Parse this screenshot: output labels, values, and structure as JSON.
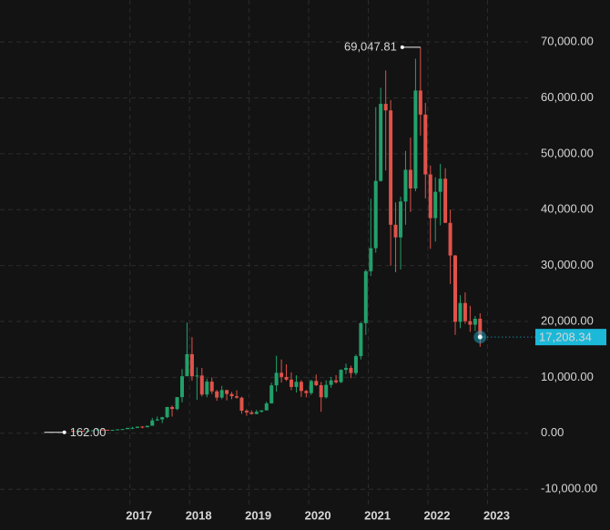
{
  "chart_data": {
    "type": "candlestick",
    "x": [
      2016.042,
      2016.125,
      2016.208,
      2016.292,
      2016.375,
      2016.458,
      2016.542,
      2016.625,
      2016.708,
      2016.792,
      2016.875,
      2016.958,
      2017.042,
      2017.125,
      2017.208,
      2017.292,
      2017.375,
      2017.458,
      2017.542,
      2017.625,
      2017.708,
      2017.792,
      2017.875,
      2017.958,
      2018.042,
      2018.125,
      2018.208,
      2018.292,
      2018.375,
      2018.458,
      2018.542,
      2018.625,
      2018.708,
      2018.792,
      2018.875,
      2018.958,
      2019.042,
      2019.125,
      2019.208,
      2019.292,
      2019.375,
      2019.458,
      2019.542,
      2019.625,
      2019.708,
      2019.792,
      2019.875,
      2019.958,
      2020.042,
      2020.125,
      2020.208,
      2020.292,
      2020.375,
      2020.458,
      2020.542,
      2020.625,
      2020.708,
      2020.792,
      2020.875,
      2020.958,
      2021.042,
      2021.125,
      2021.208,
      2021.292,
      2021.375,
      2021.458,
      2021.542,
      2021.625,
      2021.708,
      2021.792,
      2021.875,
      2021.958,
      2022.042,
      2022.125,
      2022.208,
      2022.292,
      2022.375,
      2022.458,
      2022.542,
      2022.625,
      2022.708,
      2022.792,
      2022.875
    ],
    "open": [
      430,
      370,
      437,
      416,
      448,
      531,
      673,
      624,
      575,
      609,
      700,
      745,
      963,
      970,
      1190,
      1080,
      1350,
      2300,
      2480,
      2880,
      4700,
      4340,
      6470,
      10200,
      14150,
      10200,
      10330,
      6930,
      9240,
      7500,
      6390,
      7730,
      7030,
      6630,
      6370,
      4040,
      3740,
      3460,
      3850,
      4100,
      5350,
      8570,
      10820,
      10080,
      9600,
      8290,
      9200,
      7570,
      7190,
      9350,
      8600,
      6440,
      8660,
      9460,
      9140,
      11350,
      11680,
      10780,
      13800,
      19700,
      28990,
      33110,
      45140,
      58920,
      57750,
      37300,
      35040,
      41460,
      47130,
      43790,
      61310,
      57000,
      46300,
      38480,
      43190,
      45540,
      37640,
      31800,
      19940,
      23300,
      20050,
      19420,
      20490
    ],
    "high": [
      460,
      440,
      440,
      470,
      550,
      780,
      700,
      620,
      615,
      720,
      750,
      980,
      1150,
      1200,
      1290,
      1350,
      2750,
      2980,
      2950,
      4740,
      4970,
      6470,
      11500,
      19800,
      17200,
      11800,
      11700,
      9750,
      10000,
      7760,
      8480,
      7760,
      7400,
      7680,
      6550,
      4300,
      4100,
      4200,
      4100,
      5650,
      9050,
      13880,
      13200,
      12330,
      10900,
      10370,
      9510,
      7750,
      9580,
      10500,
      9180,
      9470,
      10080,
      10400,
      11450,
      12470,
      12080,
      14100,
      19900,
      29300,
      41950,
      58350,
      61800,
      64900,
      59600,
      41300,
      42300,
      50500,
      52900,
      67000,
      69047.81,
      59100,
      47900,
      45800,
      48200,
      47400,
      40000,
      31900,
      24700,
      25200,
      22800,
      20990,
      21450
    ],
    "low": [
      350,
      365,
      405,
      410,
      440,
      520,
      590,
      470,
      570,
      605,
      690,
      740,
      750,
      920,
      890,
      1070,
      1350,
      2220,
      1830,
      2700,
      2980,
      4130,
      5550,
      10800,
      9400,
      6000,
      6600,
      6450,
      7040,
      5800,
      6100,
      5880,
      6100,
      6180,
      3500,
      3120,
      3350,
      3390,
      3730,
      4080,
      5320,
      7450,
      9070,
      9350,
      7710,
      7300,
      6510,
      6430,
      6870,
      8450,
      3850,
      6200,
      8120,
      8900,
      9000,
      10600,
      9860,
      10400,
      13200,
      17600,
      28130,
      32300,
      45000,
      47000,
      30000,
      28800,
      29300,
      37300,
      39600,
      43300,
      53250,
      42000,
      33000,
      34300,
      37200,
      37600,
      26700,
      17600,
      18800,
      19600,
      18150,
      18300,
      15480
    ],
    "close": [
      370,
      437,
      416,
      448,
      531,
      673,
      624,
      575,
      609,
      700,
      745,
      963,
      970,
      1190,
      1080,
      1350,
      2300,
      2480,
      2880,
      4700,
      4340,
      6470,
      10200,
      14150,
      10200,
      10330,
      6930,
      9240,
      7500,
      6390,
      7730,
      7030,
      6630,
      6370,
      4040,
      3740,
      3460,
      3850,
      4100,
      5350,
      8570,
      10820,
      10080,
      9600,
      8290,
      9200,
      7570,
      7190,
      9350,
      8600,
      6440,
      8660,
      9460,
      9140,
      11350,
      11680,
      10780,
      13800,
      19700,
      28990,
      33110,
      45140,
      58920,
      57750,
      37300,
      35040,
      41460,
      47130,
      43790,
      61310,
      57000,
      46300,
      38480,
      43190,
      45540,
      37640,
      31800,
      19940,
      23300,
      20050,
      19420,
      20490,
      17208.34
    ],
    "up_color": "#22a06b",
    "down_color": "#e0524a",
    "xlim": [
      2014.82,
      2023.68
    ],
    "xticks": [
      2017,
      2018,
      2019,
      2020,
      2021,
      2022,
      2023
    ],
    "ylim": [
      -12900,
      77500
    ],
    "yticks": [
      {
        "value": -10000,
        "label": "-10,000.00"
      },
      {
        "value": 0,
        "label": "0.00"
      },
      {
        "value": 10000,
        "label": "10,000.00"
      },
      {
        "value": 20000,
        "label": "20,000.00"
      },
      {
        "value": 30000,
        "label": "30,000.00"
      },
      {
        "value": 40000,
        "label": "40,000.00"
      },
      {
        "value": 50000,
        "label": "50,000.00"
      },
      {
        "value": 60000,
        "label": "60,000.00"
      },
      {
        "value": 70000,
        "label": "70,000.00"
      }
    ],
    "grid": true,
    "low_marker": {
      "x": 2015.9,
      "value": 162,
      "label": "162.00"
    },
    "high_marker": {
      "value": 69047.81,
      "label": "69,047.81"
    },
    "last_price": {
      "value": 17208.34,
      "label": "17,208.34",
      "color": "#1cb8d8"
    }
  }
}
